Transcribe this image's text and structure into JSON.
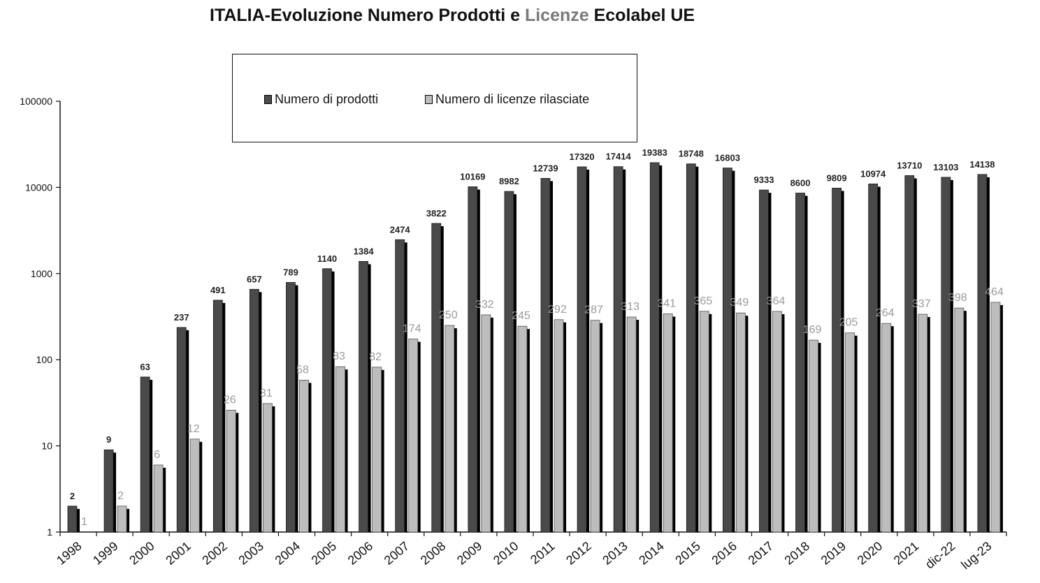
{
  "title_parts": [
    "ITALIA-Evoluzione Numero ",
    "Prodotti",
    " e ",
    "Licenze",
    " Ecolabel UE"
  ],
  "colors": {
    "products": "#4a4a4a",
    "licenses": "#bdbdbd",
    "shadow": "#000000"
  },
  "chart_data": {
    "type": "bar",
    "y_scale": "log",
    "ylim": [
      1,
      100000
    ],
    "y_ticks": [
      "1",
      "10",
      "100",
      "1000",
      "10000",
      "100000"
    ],
    "grid": false,
    "legend_position": "top",
    "categories": [
      "1998",
      "1999",
      "2000",
      "2001",
      "2002",
      "2003",
      "2004",
      "2005",
      "2006",
      "2007",
      "2008",
      "2009",
      "2010",
      "2011",
      "2012",
      "2013",
      "2014",
      "2015",
      "2016",
      "2017",
      "2018",
      "2019",
      "2020",
      "2021",
      "dic-22",
      "lug-23"
    ],
    "series": [
      {
        "name": "Numero di prodotti",
        "values": [
          2,
          9,
          63,
          237,
          491,
          657,
          789,
          1140,
          1384,
          2474,
          3822,
          10169,
          8982,
          12739,
          17320,
          17414,
          19383,
          18748,
          16803,
          9333,
          8600,
          9809,
          10974,
          13710,
          13103,
          14138
        ]
      },
      {
        "name": "Numero di licenze rilasciate",
        "values": [
          1,
          2,
          6,
          12,
          26,
          31,
          58,
          83,
          82,
          174,
          250,
          332,
          245,
          292,
          287,
          313,
          341,
          365,
          349,
          364,
          169,
          205,
          264,
          337,
          398,
          464
        ]
      }
    ]
  }
}
